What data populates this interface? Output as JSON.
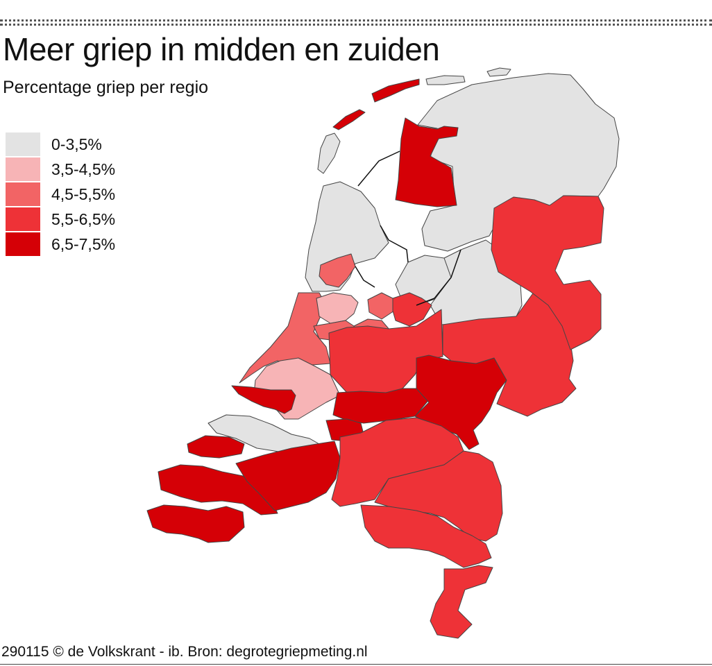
{
  "header": {
    "title": "Meer griep in midden en zuiden",
    "subtitle": "Percentage griep per regio"
  },
  "legend": {
    "items": [
      {
        "label": "0-3,5%",
        "color": "#e3e3e3"
      },
      {
        "label": "3,5-4,5%",
        "color": "#f7b4b6"
      },
      {
        "label": "4,5-5,5%",
        "color": "#f26465"
      },
      {
        "label": "5,5-6,5%",
        "color": "#ee3237"
      },
      {
        "label": "6,5-7,5%",
        "color": "#d50006"
      }
    ]
  },
  "footer": {
    "credit": "290115 © de Volkskrant - ib. Bron: degrotegriepmeting.nl"
  },
  "colors": {
    "water_outline": "#111111",
    "region_border": "#444444"
  }
}
